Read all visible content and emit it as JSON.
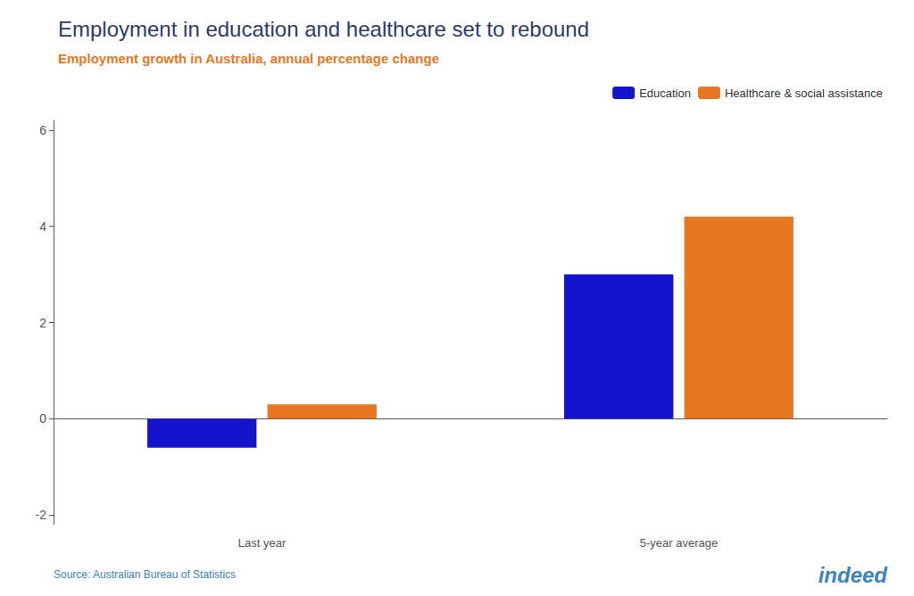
{
  "chart_data": {
    "type": "bar",
    "title": "Employment in education and healthcare set to rebound",
    "subtitle": "Employment growth in Australia, annual percentage change",
    "categories": [
      "Last year",
      "5-year average"
    ],
    "series": [
      {
        "name": "Education",
        "color": "#1414cc",
        "values": [
          -0.6,
          3.0
        ]
      },
      {
        "name": "Healthcare & social assistance",
        "color": "#e87722",
        "values": [
          0.3,
          4.2
        ]
      }
    ],
    "ylim": [
      -2.2,
      6.2
    ],
    "yticks": [
      -2,
      0,
      2,
      4,
      6
    ],
    "grid": false,
    "legend": "upper right",
    "annotations": [
      "Source: Australian Bureau of Statistics",
      "indeed"
    ]
  }
}
